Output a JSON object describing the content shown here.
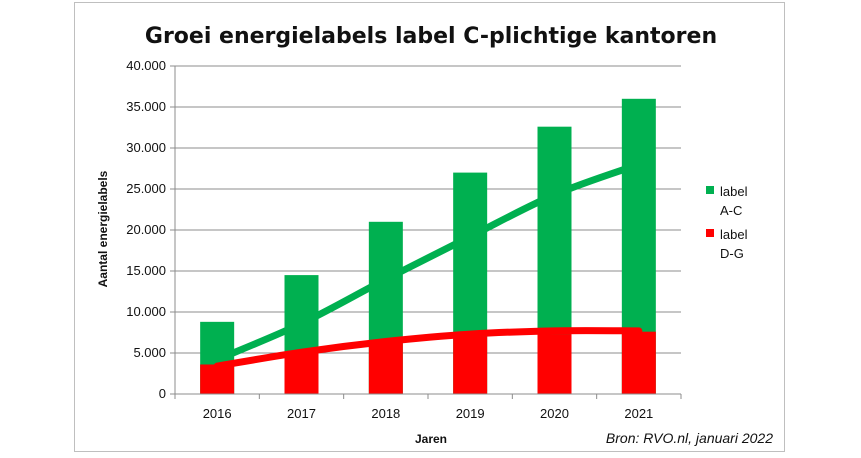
{
  "chart_data": {
    "type": "bar",
    "title": "Groei energielabels label C-plichtige kantoren",
    "xlabel": "Jaren",
    "ylabel": "Aantal energielabels",
    "categories": [
      "2016",
      "2017",
      "2018",
      "2019",
      "2020",
      "2021"
    ],
    "ylim": [
      0,
      40000
    ],
    "yticks": [
      0,
      5000,
      10000,
      15000,
      20000,
      25000,
      30000,
      35000,
      40000
    ],
    "ytick_labels": [
      "0",
      "5.000",
      "10.000",
      "15.000",
      "20.000",
      "25.000",
      "30.000",
      "35.000",
      "40.000"
    ],
    "stacked": false,
    "series": [
      {
        "name": "label A-C",
        "legend_lines": [
          "label",
          "A-C"
        ],
        "color": "#00b050",
        "values": [
          8800,
          14500,
          21000,
          27000,
          32600,
          36000
        ],
        "trend": [
          4200,
          8600,
          14000,
          19200,
          24300,
          28000
        ]
      },
      {
        "name": "label D-G",
        "legend_lines": [
          "label",
          "D-G"
        ],
        "color": "#ff0000",
        "values": [
          3600,
          5000,
          6200,
          7000,
          7300,
          7600
        ],
        "trend": [
          3400,
          5100,
          6400,
          7300,
          7700,
          7700
        ]
      }
    ],
    "source": "Bron: RVO.nl, januari 2022",
    "grid": "horizontal",
    "legend_position": "right"
  }
}
